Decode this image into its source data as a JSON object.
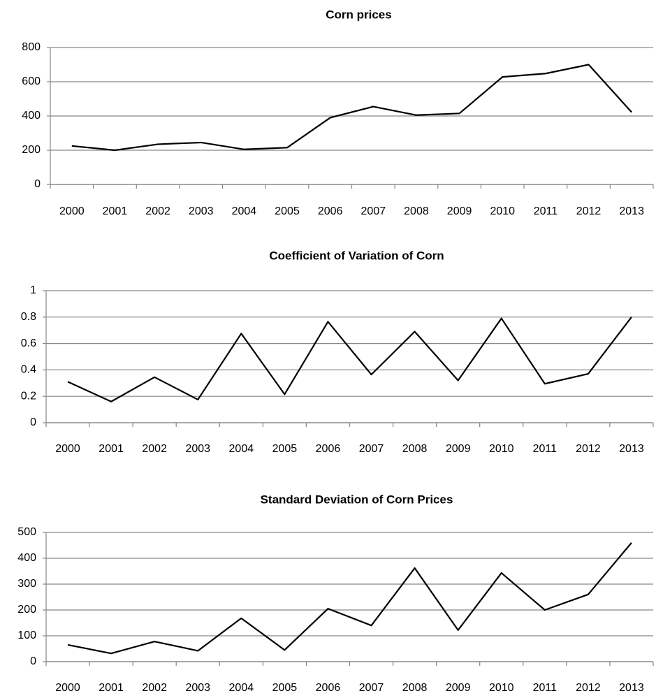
{
  "chart_data": [
    {
      "type": "line",
      "title": "Corn prices",
      "categories": [
        "2000",
        "2001",
        "2002",
        "2003",
        "2004",
        "2005",
        "2006",
        "2007",
        "2008",
        "2009",
        "2010",
        "2011",
        "2012",
        "2013"
      ],
      "series": [
        {
          "name": "Corn prices",
          "color": "#000000",
          "values": [
            225,
            200,
            235,
            245,
            205,
            215,
            390,
            455,
            405,
            415,
            628,
            648,
            700,
            422
          ]
        }
      ],
      "ylim": [
        0,
        800
      ],
      "yticks": [
        0,
        200,
        400,
        600,
        800
      ],
      "grid": true
    },
    {
      "type": "line",
      "title": "Coefficient of Variation of Corn",
      "categories": [
        "2000",
        "2001",
        "2002",
        "2003",
        "2004",
        "2005",
        "2006",
        "2007",
        "2008",
        "2009",
        "2010",
        "2011",
        "2012",
        "2013"
      ],
      "series": [
        {
          "name": "Coefficient of Variation of Corn",
          "color": "#000000",
          "values": [
            0.31,
            0.16,
            0.345,
            0.175,
            0.675,
            0.215,
            0.765,
            0.365,
            0.69,
            0.32,
            0.79,
            0.295,
            0.37,
            0.8
          ]
        }
      ],
      "ylim": [
        0,
        1
      ],
      "yticks": [
        0,
        0.2,
        0.4,
        0.6,
        0.8,
        1
      ],
      "grid": true
    },
    {
      "type": "line",
      "title": "Standard Deviation of Corn Prices",
      "categories": [
        "2000",
        "2001",
        "2002",
        "2003",
        "2004",
        "2005",
        "2006",
        "2007",
        "2008",
        "2009",
        "2010",
        "2011",
        "2012",
        "2013"
      ],
      "series": [
        {
          "name": "Standard Deviation of Corn Prices",
          "color": "#000000",
          "values": [
            65,
            32,
            78,
            42,
            168,
            45,
            205,
            140,
            362,
            122,
            343,
            200,
            260,
            460
          ]
        }
      ],
      "ylim": [
        0,
        500
      ],
      "yticks": [
        0,
        100,
        200,
        300,
        400,
        500
      ],
      "grid": true
    }
  ]
}
